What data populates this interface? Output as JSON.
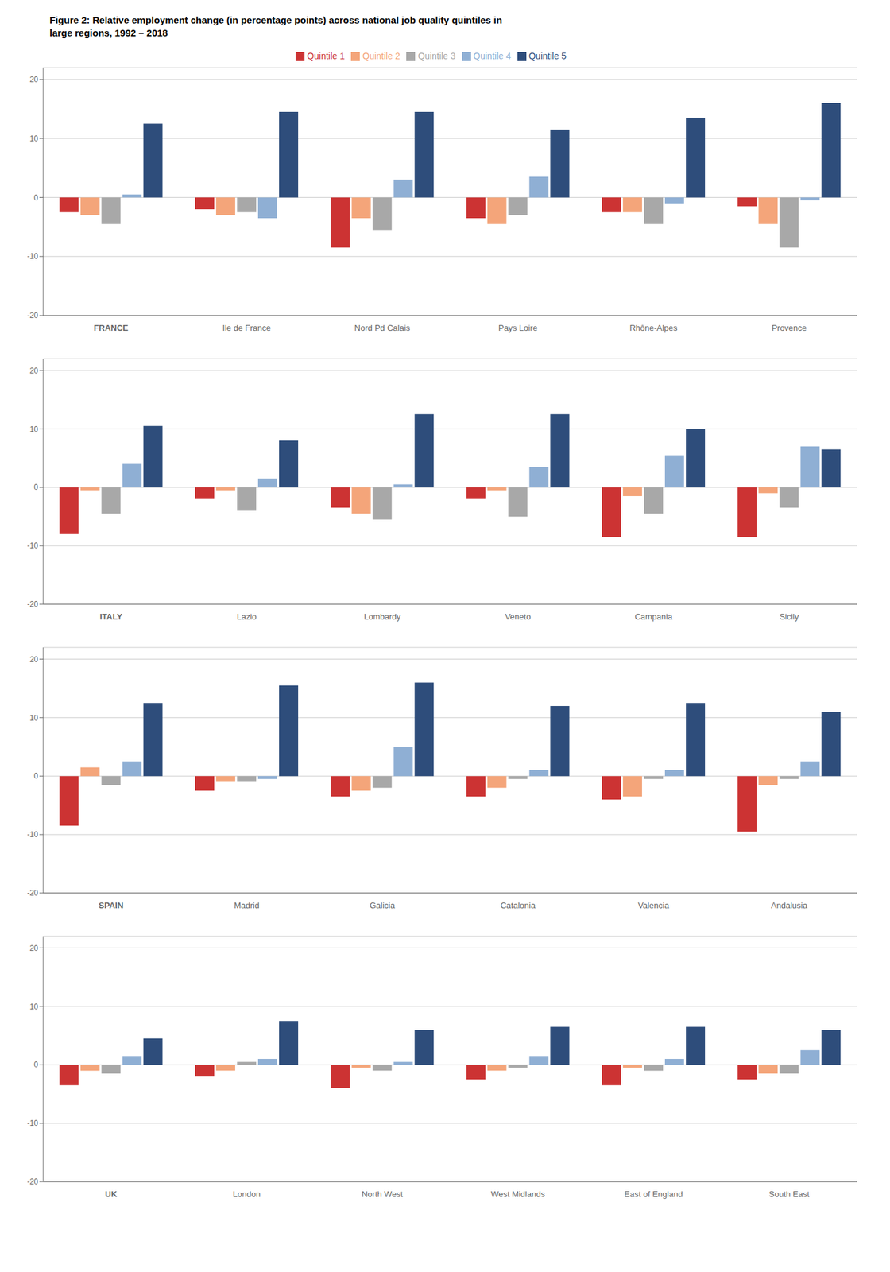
{
  "chart_data": [
    {
      "type": "bar",
      "title": "Figure 2: Relative employment change (in percentage points) across national job quality quintiles in\nlarge regions, 1992 – 2018",
      "legend": "top",
      "grid": true,
      "categories": [
        "FRANCE",
        "Ile de France",
        "Nord Pd Calais",
        "Pays Loire",
        "Rhône-Alpes",
        "Provence"
      ],
      "series": [
        {
          "name": "Quintile 1",
          "color": "#cc3333",
          "values": [
            -2.5,
            -2.0,
            -8.5,
            -3.5,
            -2.5,
            -1.5
          ]
        },
        {
          "name": "Quintile 2",
          "color": "#f4a57a",
          "values": [
            -3.0,
            -3.0,
            -3.5,
            -4.5,
            -2.5,
            -4.5
          ]
        },
        {
          "name": "Quintile 3",
          "color": "#a8a8a8",
          "values": [
            -4.5,
            -2.5,
            -5.5,
            -3.0,
            -4.5,
            -8.5
          ]
        },
        {
          "name": "Quintile 4",
          "color": "#8fafd4",
          "values": [
            0.5,
            -3.5,
            3.0,
            3.5,
            -1.0,
            -0.5
          ]
        },
        {
          "name": "Quintile 5",
          "color": "#2e4d7b",
          "values": [
            12.5,
            14.5,
            14.5,
            11.5,
            13.5,
            16.0
          ]
        }
      ],
      "ylim": [
        -20,
        22
      ],
      "yticks": [
        -20,
        -10,
        0,
        10,
        20
      ]
    },
    {
      "type": "bar",
      "grid": true,
      "categories": [
        "ITALY",
        "Lazio",
        "Lombardy",
        "Veneto",
        "Campania",
        "Sicily"
      ],
      "series": [
        {
          "name": "Quintile 1",
          "color": "#cc3333",
          "values": [
            -8.0,
            -2.0,
            -3.5,
            -2.0,
            -8.5,
            -8.5
          ]
        },
        {
          "name": "Quintile 2",
          "color": "#f4a57a",
          "values": [
            -0.5,
            -0.5,
            -4.5,
            -0.5,
            -1.5,
            -1.0
          ]
        },
        {
          "name": "Quintile 3",
          "color": "#a8a8a8",
          "values": [
            -4.5,
            -4.0,
            -5.5,
            -5.0,
            -4.5,
            -3.5
          ]
        },
        {
          "name": "Quintile 4",
          "color": "#8fafd4",
          "values": [
            4.0,
            1.5,
            0.5,
            3.5,
            5.5,
            7.0
          ]
        },
        {
          "name": "Quintile 5",
          "color": "#2e4d7b",
          "values": [
            10.5,
            8.0,
            12.5,
            12.5,
            10.0,
            6.5
          ]
        }
      ],
      "ylim": [
        -20,
        22
      ],
      "yticks": [
        -20,
        -10,
        0,
        10,
        20
      ]
    },
    {
      "type": "bar",
      "grid": true,
      "categories": [
        "SPAIN",
        "Madrid",
        "Galicia",
        "Catalonia",
        "Valencia",
        "Andalusia"
      ],
      "series": [
        {
          "name": "Quintile 1",
          "color": "#cc3333",
          "values": [
            -8.5,
            -2.5,
            -3.5,
            -3.5,
            -4.0,
            -9.5
          ]
        },
        {
          "name": "Quintile 2",
          "color": "#f4a57a",
          "values": [
            1.5,
            -1.0,
            -2.5,
            -2.0,
            -3.5,
            -1.5
          ]
        },
        {
          "name": "Quintile 3",
          "color": "#a8a8a8",
          "values": [
            -1.5,
            -1.0,
            -2.0,
            -0.5,
            -0.5,
            -0.5
          ]
        },
        {
          "name": "Quintile 4",
          "color": "#8fafd4",
          "values": [
            2.5,
            -0.5,
            5.0,
            1.0,
            1.0,
            2.5
          ]
        },
        {
          "name": "Quintile 5",
          "color": "#2e4d7b",
          "values": [
            12.5,
            15.5,
            16.0,
            12.0,
            12.5,
            11.0
          ]
        }
      ],
      "ylim": [
        -20,
        22
      ],
      "yticks": [
        -20,
        -10,
        0,
        10,
        20
      ]
    },
    {
      "type": "bar",
      "grid": true,
      "categories": [
        "UK",
        "London",
        "North West",
        "West Midlands",
        "East of England",
        "South East"
      ],
      "series": [
        {
          "name": "Quintile 1",
          "color": "#cc3333",
          "values": [
            -3.5,
            -2.0,
            -4.0,
            -2.5,
            -3.5,
            -2.5
          ]
        },
        {
          "name": "Quintile 2",
          "color": "#f4a57a",
          "values": [
            -1.0,
            -1.0,
            -0.5,
            -1.0,
            -0.5,
            -1.5
          ]
        },
        {
          "name": "Quintile 3",
          "color": "#a8a8a8",
          "values": [
            -1.5,
            0.5,
            -1.0,
            -0.5,
            -1.0,
            -1.5
          ]
        },
        {
          "name": "Quintile 4",
          "color": "#8fafd4",
          "values": [
            1.5,
            1.0,
            0.5,
            1.5,
            1.0,
            2.5
          ]
        },
        {
          "name": "Quintile 5",
          "color": "#2e4d7b",
          "values": [
            4.5,
            7.5,
            6.0,
            6.5,
            6.5,
            6.0
          ]
        }
      ],
      "ylim": [
        -20,
        22
      ],
      "yticks": [
        -20,
        -10,
        0,
        10,
        20
      ]
    }
  ]
}
